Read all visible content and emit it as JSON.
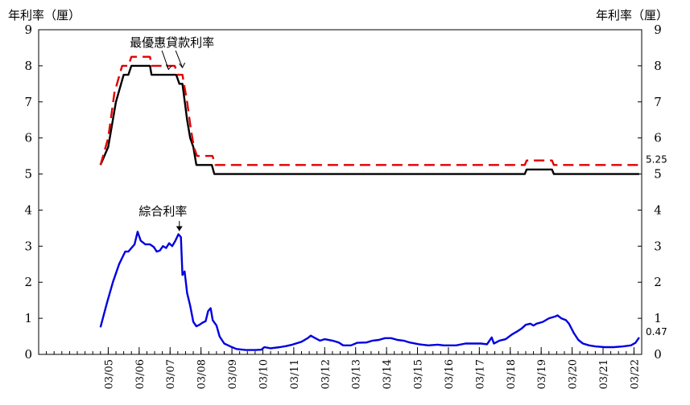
{
  "chart_data": {
    "type": "line",
    "left_unit_label": "年利率（厘）",
    "right_unit_label": "年利率（厘）",
    "ylim": [
      0,
      9
    ],
    "yticks": [
      0,
      1,
      2,
      3,
      4,
      5,
      6,
      7,
      8,
      9
    ],
    "xlim": [
      2003.0,
      2022.5
    ],
    "xtick_labels": [
      "03/05",
      "03/06",
      "03/07",
      "03/08",
      "03/09",
      "03/10",
      "03/11",
      "03/12",
      "03/13",
      "03/14",
      "03/15",
      "03/16",
      "03/17",
      "03/18",
      "03/19",
      "03/20",
      "03/21",
      "03/22"
    ],
    "xtick_values": [
      2005.25,
      2006.25,
      2007.25,
      2008.25,
      2009.25,
      2010.25,
      2011.25,
      2012.25,
      2013.25,
      2014.25,
      2015.25,
      2016.25,
      2017.25,
      2018.25,
      2019.25,
      2020.25,
      2021.25,
      2022.25
    ],
    "annotations": [
      {
        "text": "最優惠貸款利率",
        "x": 2007.3,
        "y": 8.6
      },
      {
        "text": "綜合利率",
        "x": 2006.5,
        "y": 3.9
      }
    ],
    "end_labels": [
      {
        "text": "5.25",
        "y": 5.25
      },
      {
        "text": "0.47",
        "y": 0.47
      }
    ],
    "series": [
      {
        "color": "#000000",
        "style": "solid",
        "points": [
          [
            2005.0,
            5.25
          ],
          [
            2005.25,
            5.75
          ],
          [
            2005.5,
            7.0
          ],
          [
            2005.75,
            7.75
          ],
          [
            2005.9,
            7.75
          ],
          [
            2006.0,
            8.0
          ],
          [
            2006.6,
            8.0
          ],
          [
            2006.65,
            7.75
          ],
          [
            2007.45,
            7.75
          ],
          [
            2007.55,
            7.5
          ],
          [
            2007.65,
            7.5
          ],
          [
            2007.8,
            6.5
          ],
          [
            2007.9,
            6.0
          ],
          [
            2008.0,
            5.75
          ],
          [
            2008.1,
            5.25
          ],
          [
            2008.6,
            5.25
          ],
          [
            2008.68,
            5.0
          ],
          [
            2018.72,
            5.0
          ],
          [
            2018.78,
            5.125
          ],
          [
            2019.6,
            5.125
          ],
          [
            2019.66,
            5.0
          ],
          [
            2022.42,
            5.0
          ]
        ]
      },
      {
        "color": "#e00000",
        "style": "dashed",
        "points": [
          [
            2005.0,
            5.25
          ],
          [
            2005.25,
            6.0
          ],
          [
            2005.45,
            7.25
          ],
          [
            2005.7,
            8.0
          ],
          [
            2005.9,
            8.0
          ],
          [
            2006.0,
            8.25
          ],
          [
            2006.6,
            8.25
          ],
          [
            2006.65,
            8.0
          ],
          [
            2007.4,
            8.0
          ],
          [
            2007.5,
            7.75
          ],
          [
            2007.65,
            7.75
          ],
          [
            2007.8,
            7.0
          ],
          [
            2007.92,
            6.25
          ],
          [
            2008.02,
            5.75
          ],
          [
            2008.12,
            5.5
          ],
          [
            2008.62,
            5.5
          ],
          [
            2008.72,
            5.25
          ],
          [
            2018.72,
            5.25
          ],
          [
            2018.78,
            5.375
          ],
          [
            2019.6,
            5.375
          ],
          [
            2019.66,
            5.25
          ],
          [
            2022.42,
            5.25
          ]
        ]
      },
      {
        "color": "#0000e0",
        "style": "solid",
        "points": [
          [
            2005.0,
            0.75
          ],
          [
            2005.2,
            1.4
          ],
          [
            2005.4,
            2.0
          ],
          [
            2005.6,
            2.5
          ],
          [
            2005.8,
            2.85
          ],
          [
            2005.9,
            2.85
          ],
          [
            2006.0,
            2.95
          ],
          [
            2006.1,
            3.05
          ],
          [
            2006.2,
            3.4
          ],
          [
            2006.3,
            3.15
          ],
          [
            2006.45,
            3.05
          ],
          [
            2006.6,
            3.05
          ],
          [
            2006.72,
            2.98
          ],
          [
            2006.82,
            2.85
          ],
          [
            2006.92,
            2.88
          ],
          [
            2007.02,
            3.0
          ],
          [
            2007.12,
            2.95
          ],
          [
            2007.22,
            3.08
          ],
          [
            2007.32,
            3.0
          ],
          [
            2007.42,
            3.15
          ],
          [
            2007.52,
            3.33
          ],
          [
            2007.6,
            3.25
          ],
          [
            2007.65,
            2.2
          ],
          [
            2007.72,
            2.3
          ],
          [
            2007.8,
            1.7
          ],
          [
            2007.9,
            1.35
          ],
          [
            2008.0,
            0.9
          ],
          [
            2008.1,
            0.78
          ],
          [
            2008.2,
            0.82
          ],
          [
            2008.3,
            0.88
          ],
          [
            2008.4,
            0.92
          ],
          [
            2008.48,
            1.2
          ],
          [
            2008.56,
            1.28
          ],
          [
            2008.63,
            0.95
          ],
          [
            2008.75,
            0.8
          ],
          [
            2008.85,
            0.5
          ],
          [
            2009.0,
            0.3
          ],
          [
            2009.2,
            0.22
          ],
          [
            2009.4,
            0.15
          ],
          [
            2009.7,
            0.12
          ],
          [
            2010.0,
            0.12
          ],
          [
            2010.2,
            0.13
          ],
          [
            2010.3,
            0.2
          ],
          [
            2010.5,
            0.17
          ],
          [
            2010.8,
            0.2
          ],
          [
            2011.0,
            0.23
          ],
          [
            2011.2,
            0.27
          ],
          [
            2011.5,
            0.35
          ],
          [
            2011.7,
            0.45
          ],
          [
            2011.8,
            0.52
          ],
          [
            2011.9,
            0.47
          ],
          [
            2012.1,
            0.38
          ],
          [
            2012.25,
            0.42
          ],
          [
            2012.5,
            0.38
          ],
          [
            2012.7,
            0.33
          ],
          [
            2012.85,
            0.25
          ],
          [
            2013.1,
            0.25
          ],
          [
            2013.3,
            0.32
          ],
          [
            2013.6,
            0.33
          ],
          [
            2013.8,
            0.38
          ],
          [
            2014.0,
            0.4
          ],
          [
            2014.2,
            0.45
          ],
          [
            2014.4,
            0.45
          ],
          [
            2014.6,
            0.4
          ],
          [
            2014.8,
            0.38
          ],
          [
            2015.0,
            0.33
          ],
          [
            2015.3,
            0.28
          ],
          [
            2015.6,
            0.25
          ],
          [
            2015.9,
            0.27
          ],
          [
            2016.1,
            0.25
          ],
          [
            2016.3,
            0.25
          ],
          [
            2016.5,
            0.25
          ],
          [
            2016.8,
            0.3
          ],
          [
            2017.0,
            0.3
          ],
          [
            2017.3,
            0.3
          ],
          [
            2017.5,
            0.28
          ],
          [
            2017.65,
            0.47
          ],
          [
            2017.72,
            0.3
          ],
          [
            2017.9,
            0.38
          ],
          [
            2018.1,
            0.42
          ],
          [
            2018.3,
            0.55
          ],
          [
            2018.5,
            0.65
          ],
          [
            2018.62,
            0.72
          ],
          [
            2018.75,
            0.82
          ],
          [
            2018.9,
            0.85
          ],
          [
            2019.0,
            0.8
          ],
          [
            2019.1,
            0.85
          ],
          [
            2019.3,
            0.9
          ],
          [
            2019.5,
            1.0
          ],
          [
            2019.7,
            1.05
          ],
          [
            2019.78,
            1.08
          ],
          [
            2019.9,
            1.0
          ],
          [
            2020.05,
            0.95
          ],
          [
            2020.15,
            0.85
          ],
          [
            2020.3,
            0.6
          ],
          [
            2020.45,
            0.4
          ],
          [
            2020.6,
            0.3
          ],
          [
            2020.8,
            0.25
          ],
          [
            2021.0,
            0.22
          ],
          [
            2021.3,
            0.2
          ],
          [
            2021.6,
            0.2
          ],
          [
            2021.9,
            0.22
          ],
          [
            2022.15,
            0.25
          ],
          [
            2022.3,
            0.32
          ],
          [
            2022.42,
            0.47
          ]
        ]
      }
    ]
  }
}
